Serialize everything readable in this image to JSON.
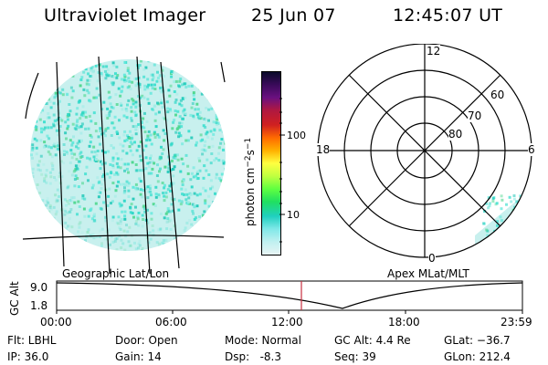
{
  "header": {
    "title": "Ultraviolet Imager",
    "date": "25 Jun 07",
    "time": "12:45:07 UT"
  },
  "colorbar": {
    "unit_label": "photon cm",
    "unit_exp1": "−2",
    "unit_mid": "s",
    "unit_exp2": "−1",
    "tick_high": "100",
    "tick_low": "10",
    "colors": [
      "#0a0a2a",
      "#3a0a5a",
      "#6a1080",
      "#b01840",
      "#d02020",
      "#ff6a00",
      "#ffb000",
      "#ffff40",
      "#c0ff40",
      "#60ff40",
      "#20e060",
      "#20d0c0",
      "#80e8e8",
      "#c0f0f0",
      "#e8f4f4"
    ]
  },
  "left_panel": {
    "caption": "Geographic Lat/Lon",
    "fill_color": "#40e0d0"
  },
  "right_panel": {
    "caption": "Apex MLat/MLT",
    "mlt_top": "12",
    "mlt_left": "18",
    "mlt_right": "6",
    "mlt_bottom": "0",
    "lat_60": "60",
    "lat_70": "70",
    "lat_80": "80"
  },
  "timeline": {
    "y_label": "GC Alt",
    "y_high": "9.0",
    "y_low": "1.8",
    "ticks": [
      "00:00",
      "06:00",
      "12:00",
      "18:00",
      "23:59"
    ],
    "marker_color": "#c83040"
  },
  "footer": {
    "flt": "Flt: LBHL",
    "ip": "IP: 36.0",
    "door": "Door: Open",
    "gain": "Gain: 14",
    "mode": "Mode: Normal",
    "dsp": "Dsp:   -8.3",
    "gc_alt": "GC Alt: 4.4 Re",
    "seq": "Seq: 39",
    "glat": "GLat: −36.7",
    "glon": "GLon: 212.4"
  }
}
